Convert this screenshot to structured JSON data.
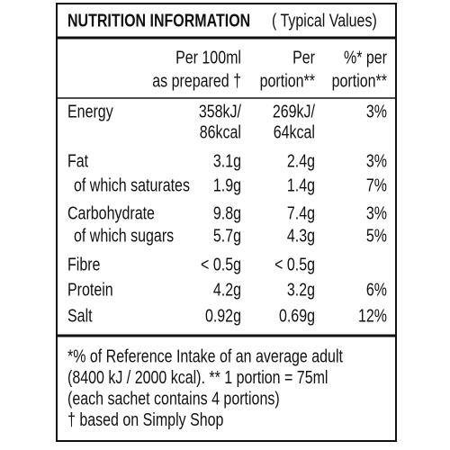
{
  "header": {
    "title": "NUTRITION INFORMATION",
    "subtitle": "( Typical Values)"
  },
  "columns": [
    [
      "Per 100ml",
      "as prepared †"
    ],
    [
      "Per",
      "portion**"
    ],
    [
      "%* per",
      "portion**"
    ]
  ],
  "rows": [
    {
      "label": "Energy",
      "per_100ml": [
        "358kJ/",
        "86kcal"
      ],
      "per_portion": [
        "269kJ/",
        "64kcal"
      ],
      "ri": "3%"
    },
    {
      "label": "Fat",
      "per_100ml": "3.1g",
      "per_portion": "2.4g",
      "ri": "3%"
    },
    {
      "label": "of which saturates",
      "per_100ml": "1.9g",
      "per_portion": "1.4g",
      "ri": "7%"
    },
    {
      "label": "Carbohydrate",
      "per_100ml": "9.8g",
      "per_portion": "7.4g",
      "ri": "3%"
    },
    {
      "label": "of which sugars",
      "per_100ml": "5.7g",
      "per_portion": "4.3g",
      "ri": "5%"
    },
    {
      "label": "Fibre",
      "per_100ml": "< 0.5g",
      "per_portion": "< 0.5g"
    },
    {
      "label": "Protein",
      "per_100ml": "4.2g",
      "per_portion": "3.2g",
      "ri": "6%"
    },
    {
      "label": "Salt",
      "per_100ml": "0.92g",
      "per_portion": "0.69g",
      "ri": "12%"
    }
  ],
  "footnotes": [
    "*% of Reference Intake of an average adult",
    "(8400 kJ / 2000 kcal). ** 1 portion = 75ml",
    "(each sachet contains 4 portions)",
    "† based on Simply Shop"
  ]
}
